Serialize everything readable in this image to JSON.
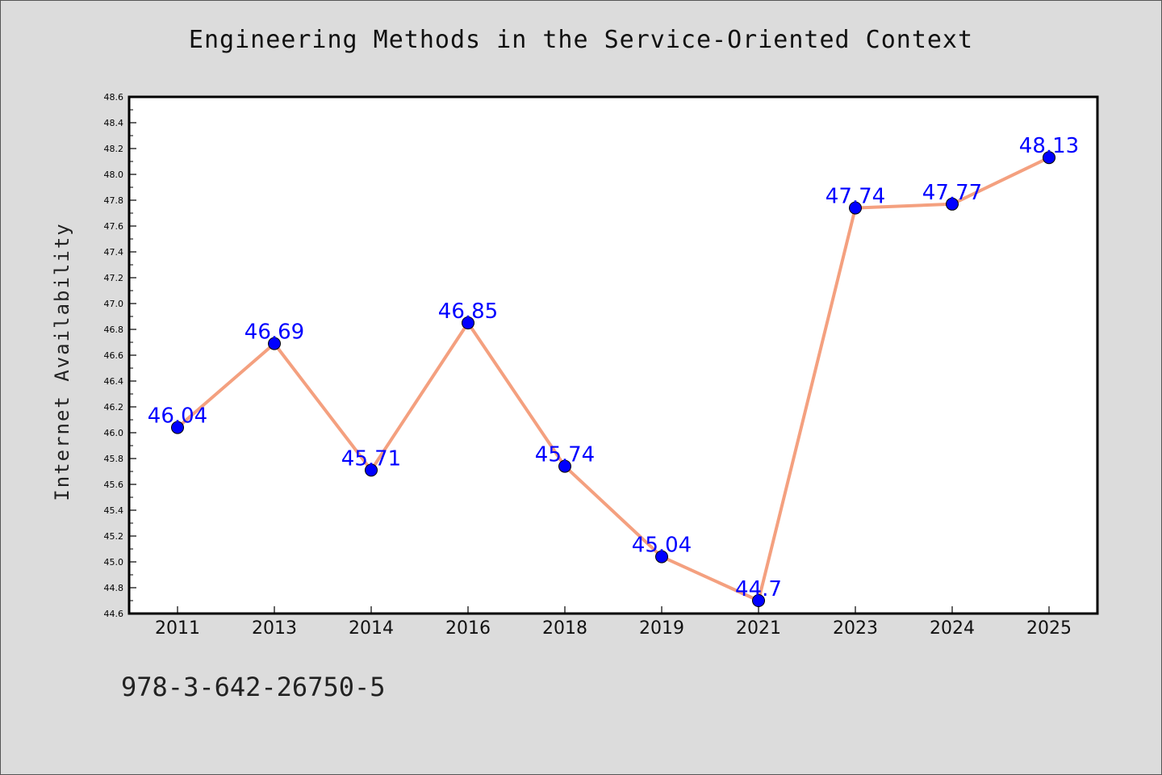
{
  "figure": {
    "footer_text": "978-3-642-26750-5"
  },
  "colors": {
    "background": "#dcdcdc",
    "plot_background": "#ffffff",
    "line": "#f4a07f",
    "marker": "#0000ff",
    "data_label": "#0000ff"
  },
  "chart_data": {
    "type": "line",
    "title": "Engineering Methods in the Service-Oriented Context",
    "xlabel": "",
    "ylabel": "Internet Availability",
    "categories": [
      "2011",
      "2013",
      "2014",
      "2016",
      "2018",
      "2019",
      "2021",
      "2023",
      "2024",
      "2025"
    ],
    "series": [
      {
        "values": [
          46.04,
          46.69,
          45.71,
          46.85,
          45.74,
          45.04,
          44.7,
          47.74,
          47.77,
          48.13
        ],
        "data_labels": [
          "46.04",
          "46.69",
          "45.71",
          "46.85",
          "45.74",
          "45.04",
          "44.7",
          "47.74",
          "47.77",
          "48.13"
        ]
      }
    ],
    "ylim": [
      44.6,
      48.6
    ],
    "y_ticks": [
      "44.6",
      "44.8",
      "45.0",
      "45.2",
      "45.4",
      "45.6",
      "45.8",
      "46.0",
      "46.2",
      "46.4",
      "46.6",
      "46.8",
      "47.0",
      "47.2",
      "47.4",
      "47.6",
      "47.8",
      "48.0",
      "48.2",
      "48.4",
      "48.6"
    ],
    "grid": false,
    "legend": "none",
    "marker": "circle"
  }
}
